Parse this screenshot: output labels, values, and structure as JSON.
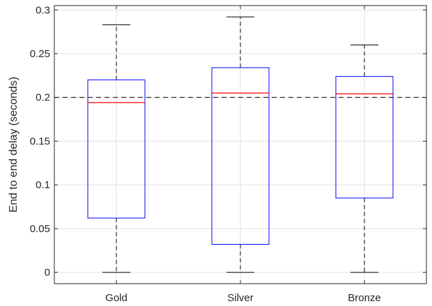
{
  "chart_data": {
    "type": "box",
    "title": "",
    "xlabel": "",
    "ylabel": "End to end delay (seconds)",
    "categories": [
      "Gold",
      "Silver",
      "Bronze"
    ],
    "boxes": [
      {
        "name": "Gold",
        "min": 0.0,
        "q1": 0.062,
        "median": 0.194,
        "q3": 0.22,
        "max": 0.283
      },
      {
        "name": "Silver",
        "min": 0.0,
        "q1": 0.032,
        "median": 0.205,
        "q3": 0.234,
        "max": 0.292
      },
      {
        "name": "Bronze",
        "min": 0.0,
        "q1": 0.085,
        "median": 0.204,
        "q3": 0.224,
        "max": 0.26
      }
    ],
    "reference_line": {
      "y": 0.2,
      "style": "dashed",
      "color": "#000000"
    },
    "ylim": [
      -0.013,
      0.305
    ],
    "yticks": [
      0,
      0.05,
      0.1,
      0.15,
      0.2,
      0.25,
      0.3
    ],
    "ytick_labels": [
      "0",
      "0.05",
      "0.1",
      "0.15",
      "0.2",
      "0.25",
      "0.3"
    ],
    "grid": true,
    "colors": {
      "box": "#0000ff",
      "median": "#ff0000",
      "whisker": "#000000",
      "grid": "#e0e0e0"
    }
  }
}
